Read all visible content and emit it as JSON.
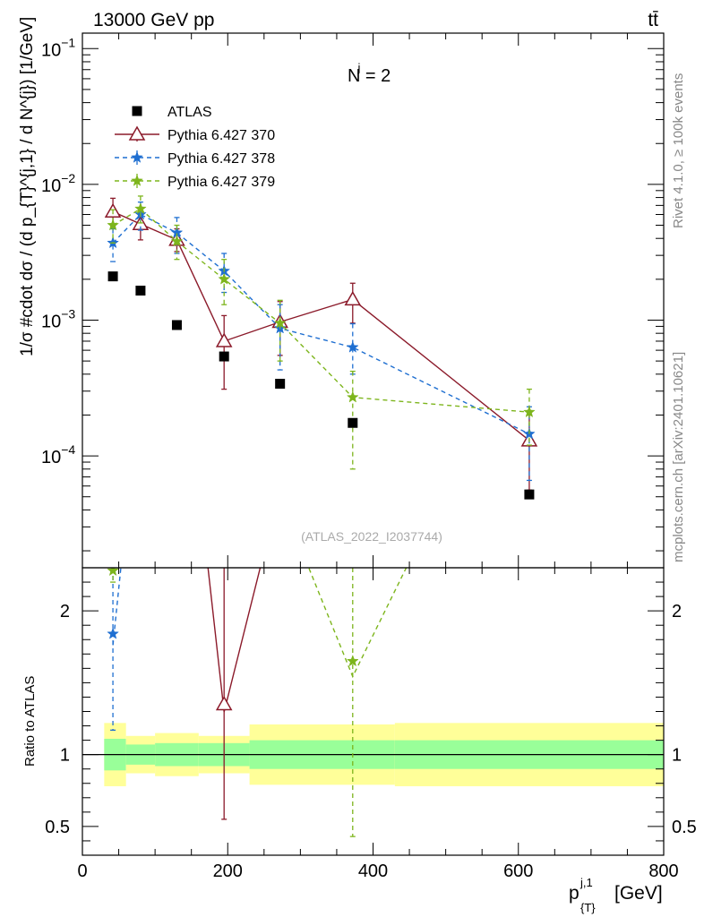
{
  "chart_data": {
    "type": "scatter",
    "header_left": "13000 GeV pp",
    "header_right": "tt̄",
    "annotation": "N",
    "annotation_sup": "j",
    "annotation_tail": " = 2",
    "watermark": "(ATLAS_2022_I2037744)",
    "side_label_top": "Rivet 4.1.0, ≥ 100k events",
    "side_label_bottom": "mcplots.cern.ch [arXiv:2401.10621]",
    "ylabel_main": "1/σ #cdot dσ / (d p_{T}^{j,1} / d N^{j}) [1/GeV]",
    "ylabel_ratio": "Ratio to ATLAS",
    "xlabel": "p_{T}^{j,1} [GeV]",
    "xlabel_main": "p",
    "xlabel_sup": "j,1",
    "xlabel_sub": "{T}",
    "xlabel_unit": "[GeV]",
    "xlim": [
      0,
      800
    ],
    "ylim_main": [
      1.5e-05,
      0.13
    ],
    "ylim_ratio": [
      0.3,
      2.3
    ],
    "x_ticks": [
      {
        "value": 0,
        "label": "0"
      },
      {
        "value": 200,
        "label": "200"
      },
      {
        "value": 400,
        "label": "400"
      },
      {
        "value": 600,
        "label": "600"
      },
      {
        "value": 800,
        "label": "800"
      }
    ],
    "y_ticks_main": [
      {
        "value": 0.1,
        "base": "10",
        "exp": "−1"
      },
      {
        "value": 0.01,
        "base": "10",
        "exp": "−2"
      },
      {
        "value": 0.001,
        "base": "10",
        "exp": "−3"
      },
      {
        "value": 0.0001,
        "base": "10",
        "exp": "−4"
      }
    ],
    "y_ticks_ratio": [
      {
        "value": 0.5,
        "label": "0.5"
      },
      {
        "value": 1,
        "label": "1"
      },
      {
        "value": 2,
        "label": "2"
      }
    ],
    "bins": [
      {
        "lo": 30,
        "hi": 60,
        "band1": 0.11,
        "band2": 0.22
      },
      {
        "lo": 60,
        "hi": 100,
        "band1": 0.07,
        "band2": 0.13
      },
      {
        "lo": 100,
        "hi": 160,
        "band1": 0.08,
        "band2": 0.15
      },
      {
        "lo": 160,
        "hi": 230,
        "band1": 0.08,
        "band2": 0.13
      },
      {
        "lo": 230,
        "hi": 430,
        "band1": 0.1,
        "band2": 0.21
      },
      {
        "lo": 430,
        "hi": 800,
        "band1": 0.1,
        "band2": 0.22
      }
    ],
    "data": {
      "name": "ATLAS",
      "x": [
        42,
        80,
        130,
        195,
        272,
        372,
        615
      ],
      "y": [
        0.0021,
        0.00165,
        0.00092,
        0.00054,
        0.00034,
        0.000175,
        5.2e-05
      ]
    },
    "series": [
      {
        "name": "Pythia 6.427 370",
        "color": "#8b1a2a",
        "dash": "",
        "marker": "triangle",
        "x": [
          42,
          80,
          130,
          195,
          272,
          372,
          615
        ],
        "y": [
          0.0063,
          0.0051,
          0.0039,
          0.0007,
          0.00097,
          0.00142,
          0.00013
        ],
        "err_up": [
          0.0079,
          0.0064,
          0.0047,
          0.00108,
          0.00137,
          0.00187,
          0.0002
        ],
        "err_dn": [
          0.0049,
          0.0039,
          0.0032,
          0.00031,
          0.00055,
          0.00095,
          5.6e-05
        ]
      },
      {
        "name": "Pythia 6.427 378",
        "color": "#1f6fd1",
        "dash": "5,4",
        "marker": "star",
        "x": [
          42,
          80,
          130,
          195,
          272,
          372,
          615
        ],
        "y": [
          0.0037,
          0.006,
          0.0044,
          0.0023,
          0.00087,
          0.00063,
          0.000145
        ],
        "err_up": [
          0.0047,
          0.0074,
          0.0057,
          0.0031,
          0.0013,
          0.00094,
          0.00023
        ],
        "err_dn": [
          0.0027,
          0.0046,
          0.0031,
          0.0016,
          0.00043,
          0.0004,
          6.6e-05
        ]
      },
      {
        "name": "Pythia 6.427 379",
        "color": "#7db51c",
        "dash": "5,4",
        "marker": "star",
        "x": [
          42,
          80,
          130,
          195,
          272,
          372,
          615
        ],
        "y": [
          0.005,
          0.0066,
          0.0038,
          0.002,
          0.00095,
          0.00027,
          0.00021
        ],
        "err_up": [
          0.0065,
          0.0082,
          0.005,
          0.0028,
          0.0014,
          0.00042,
          0.00031
        ],
        "err_dn": [
          0.0037,
          0.0052,
          0.0028,
          0.0013,
          0.0005,
          8e-05,
          0.00012
        ]
      }
    ],
    "ratio_points": [
      {
        "series": 0,
        "x": 195,
        "y": 1.35,
        "err_up": 2.3,
        "err_dn": 0.55
      },
      {
        "series": 1,
        "x": 42,
        "y": 1.84,
        "err_up": 2.3,
        "err_dn": 1.17
      },
      {
        "series": 2,
        "x": 372,
        "y": 1.65,
        "err_up": 2.3,
        "err_dn": 0.43
      },
      {
        "series": 2,
        "x": 42,
        "y": 2.28,
        "err_up": 2.3,
        "err_dn": 2.2
      }
    ]
  }
}
